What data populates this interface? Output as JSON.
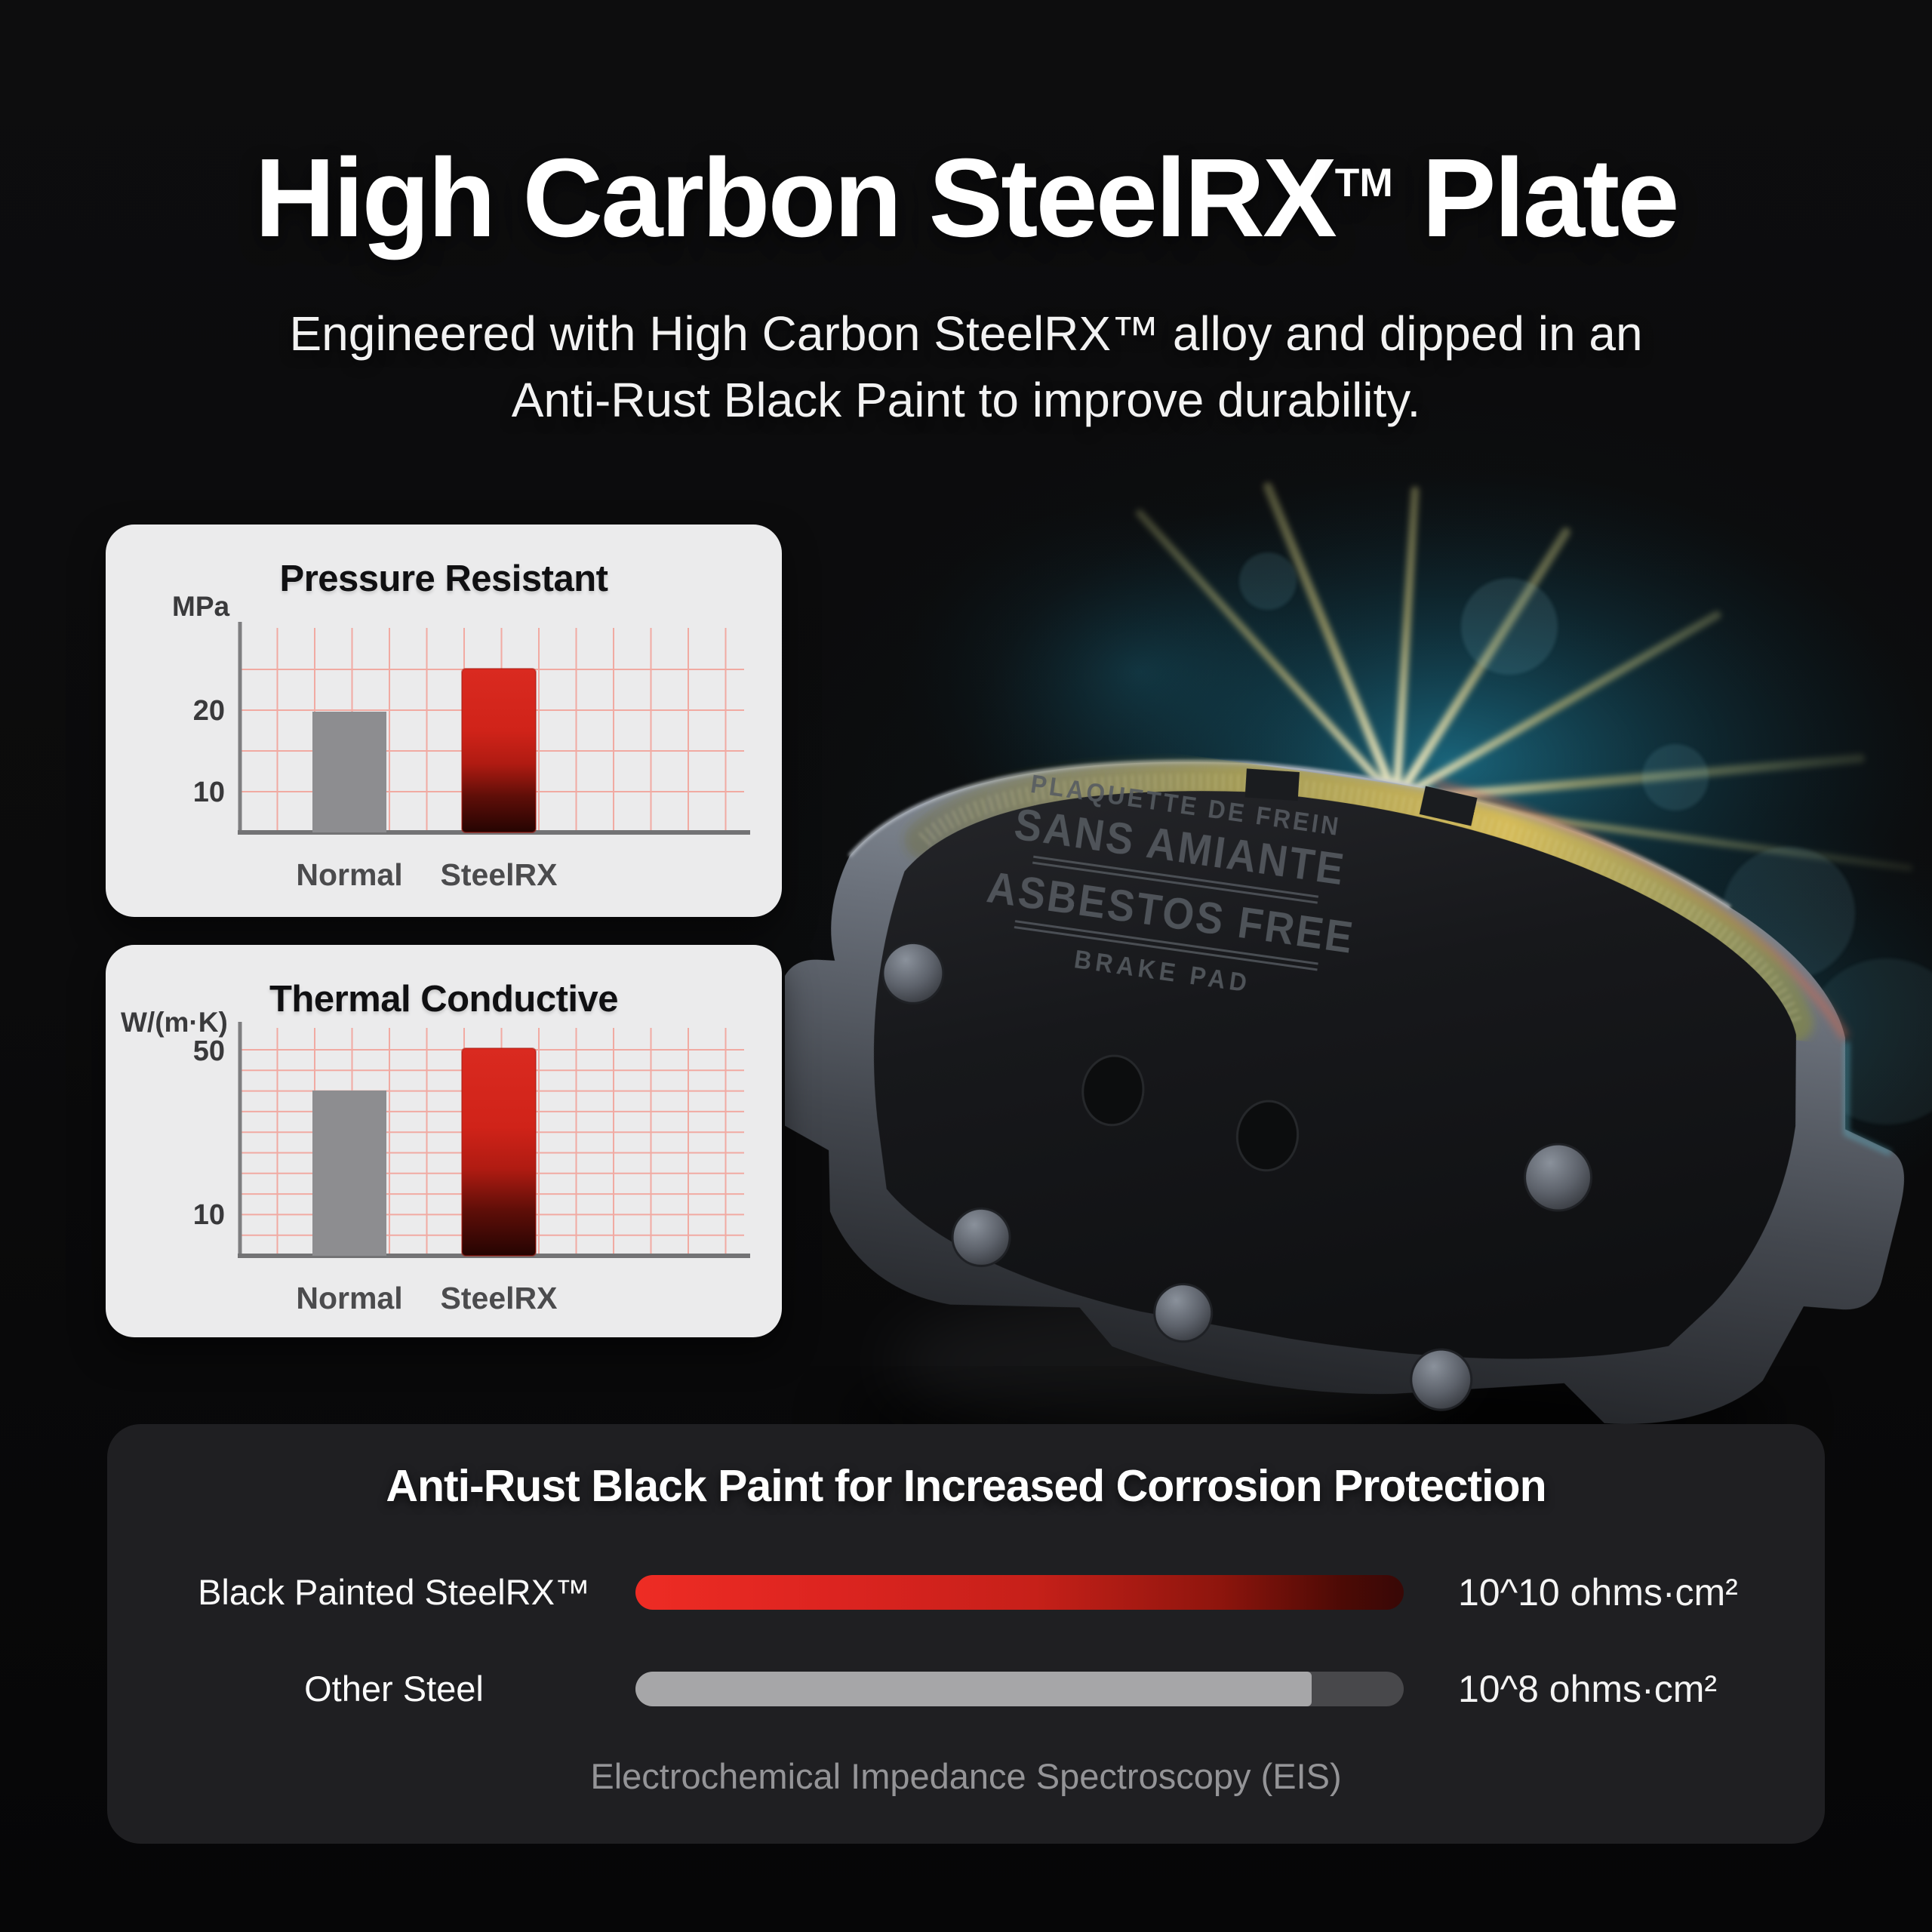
{
  "header": {
    "title_main": "High Carbon SteelRX",
    "title_tm": "TM",
    "title_suffix": " Plate",
    "subtitle_line1": "Engineered with High Carbon SteelRX™ alloy and dipped in an",
    "subtitle_line2": "Anti-Rust Black Paint to improve durability."
  },
  "chart_data": [
    {
      "type": "bar",
      "title": "Pressure Resistant",
      "ylabel": "MPa",
      "categories": [
        "Normal",
        "SteelRX"
      ],
      "values": [
        20,
        25
      ],
      "yticks": [
        {
          "value": 20,
          "label": "20"
        },
        {
          "value": 10,
          "label": "10"
        }
      ],
      "ylim": [
        0,
        30
      ],
      "grid": true,
      "legend": false,
      "bar_colors": [
        "gray",
        "red"
      ]
    },
    {
      "type": "bar",
      "title": "Thermal Conductive",
      "ylabel": "W/(m·K)",
      "categories": [
        "Normal",
        "SteelRX"
      ],
      "values": [
        40,
        50
      ],
      "yticks": [
        {
          "value": 50,
          "label": "50"
        },
        {
          "value": 10,
          "label": "10"
        }
      ],
      "ylim": [
        0,
        55
      ],
      "grid": true,
      "legend": false,
      "bar_colors": [
        "gray",
        "red"
      ]
    },
    {
      "type": "bar",
      "orientation": "horizontal",
      "title": "Anti-Rust Black Paint for Increased Corrosion Protection",
      "categories": [
        "Black Painted SteelRX™",
        "Other Steel"
      ],
      "value_labels": [
        "10^10 ohms·cm²",
        "10^8 ohms·cm²"
      ],
      "values_exponent_ohms_cm2": [
        10,
        8
      ],
      "fill_pct": [
        100,
        88
      ],
      "bar_colors": [
        "red",
        "gray"
      ],
      "footnote": "Electrochemical Impedance Spectroscopy (EIS)"
    }
  ],
  "product": {
    "stamp_lines": [
      "PLAQUETTE DE FREIN",
      "SANS AMIANTE",
      "ASBESTOS FREE",
      "BRAKE PAD"
    ]
  },
  "colors": {
    "page_bg": "#0b0b0c",
    "chart_card_bg": "#ebebec",
    "dark_card_bg": "#1f1f22",
    "grid_pink": "#f2a49b",
    "bar_gray": "#8d8d90",
    "accent_red": "#d32318",
    "footnote_gray": "#949497"
  }
}
